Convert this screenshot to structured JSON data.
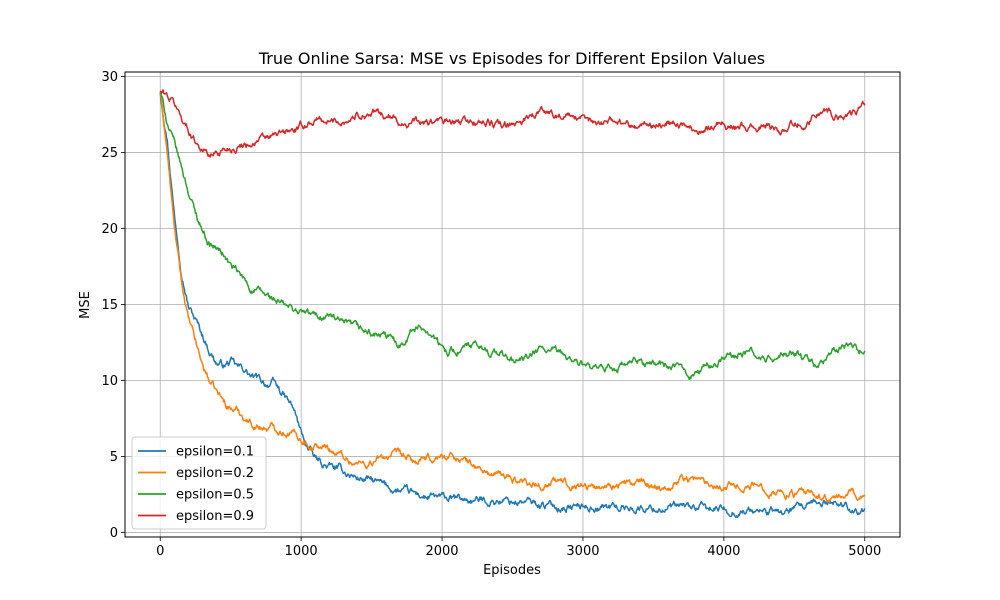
{
  "chart_data": {
    "type": "line",
    "title": "True Online Sarsa: MSE vs Episodes for Different Epsilon Values",
    "xlabel": "Episodes",
    "ylabel": "MSE",
    "xlim": [
      -250,
      5250
    ],
    "ylim": [
      -0.3,
      30.3
    ],
    "xticks": [
      0,
      1000,
      2000,
      3000,
      4000,
      5000
    ],
    "yticks": [
      0,
      5,
      10,
      15,
      20,
      25,
      30
    ],
    "xtick_labels": [
      "0",
      "1000",
      "2000",
      "3000",
      "4000",
      "5000"
    ],
    "ytick_labels": [
      "0",
      "5",
      "10",
      "15",
      "20",
      "25",
      "30"
    ],
    "grid": true,
    "legend_position": "lower-left",
    "series": [
      {
        "name": "epsilon=0.1",
        "color": "#1f77b4",
        "points": [
          [
            0,
            29
          ],
          [
            50,
            26
          ],
          [
            100,
            21
          ],
          [
            150,
            17.5
          ],
          [
            200,
            15
          ],
          [
            250,
            14
          ],
          [
            300,
            13
          ],
          [
            350,
            12
          ],
          [
            400,
            11.2
          ],
          [
            450,
            11
          ],
          [
            500,
            11.2
          ],
          [
            550,
            10.8
          ],
          [
            600,
            10.7
          ],
          [
            650,
            10.2
          ],
          [
            700,
            10
          ],
          [
            750,
            9.8
          ],
          [
            800,
            9.8
          ],
          [
            850,
            9.3
          ],
          [
            900,
            8.7
          ],
          [
            950,
            8
          ],
          [
            1000,
            6.5
          ],
          [
            1050,
            5.5
          ],
          [
            1100,
            4.8
          ],
          [
            1150,
            4.5
          ],
          [
            1200,
            4.3
          ],
          [
            1300,
            4
          ],
          [
            1400,
            3.6
          ],
          [
            1500,
            3.4
          ],
          [
            1600,
            3
          ],
          [
            1700,
            2.7
          ],
          [
            1800,
            2.5
          ],
          [
            1900,
            2.3
          ],
          [
            2000,
            2.2
          ],
          [
            2200,
            2.1
          ],
          [
            2400,
            2.1
          ],
          [
            2600,
            2
          ],
          [
            2800,
            1.7
          ],
          [
            3000,
            1.7
          ],
          [
            3200,
            1.7
          ],
          [
            3400,
            1.6
          ],
          [
            3600,
            1.6
          ],
          [
            3800,
            1.6
          ],
          [
            4000,
            1.5
          ],
          [
            4200,
            1.4
          ],
          [
            4400,
            1.3
          ],
          [
            4600,
            1.6
          ],
          [
            4700,
            1.9
          ],
          [
            4800,
            2
          ],
          [
            4900,
            1.7
          ],
          [
            5000,
            1.3
          ]
        ]
      },
      {
        "name": "epsilon=0.2",
        "color": "#ff7f0e",
        "points": [
          [
            0,
            29
          ],
          [
            50,
            25
          ],
          [
            100,
            20
          ],
          [
            150,
            16.5
          ],
          [
            200,
            14
          ],
          [
            250,
            12.5
          ],
          [
            300,
            11
          ],
          [
            350,
            10
          ],
          [
            400,
            9.2
          ],
          [
            450,
            8.6
          ],
          [
            500,
            8.2
          ],
          [
            550,
            8
          ],
          [
            600,
            7.6
          ],
          [
            650,
            7.2
          ],
          [
            700,
            7
          ],
          [
            750,
            6.9
          ],
          [
            800,
            6.9
          ],
          [
            850,
            6.8
          ],
          [
            900,
            6.7
          ],
          [
            950,
            6.5
          ],
          [
            1000,
            6.2
          ],
          [
            1100,
            5.7
          ],
          [
            1200,
            5.5
          ],
          [
            1300,
            5
          ],
          [
            1400,
            4.5
          ],
          [
            1500,
            4.6
          ],
          [
            1600,
            5
          ],
          [
            1700,
            5
          ],
          [
            1800,
            4.6
          ],
          [
            1900,
            4.7
          ],
          [
            2000,
            5
          ],
          [
            2100,
            5
          ],
          [
            2200,
            4.5
          ],
          [
            2300,
            4
          ],
          [
            2400,
            3.7
          ],
          [
            2500,
            3.5
          ],
          [
            2600,
            3.4
          ],
          [
            2700,
            3.1
          ],
          [
            2800,
            3.3
          ],
          [
            3000,
            3.2
          ],
          [
            3100,
            2.9
          ],
          [
            3200,
            3.2
          ],
          [
            3400,
            3.2
          ],
          [
            3500,
            3.1
          ],
          [
            3600,
            3
          ],
          [
            3700,
            3.6
          ],
          [
            3800,
            3.5
          ],
          [
            3900,
            3.2
          ],
          [
            4000,
            3.2
          ],
          [
            4100,
            3.1
          ],
          [
            4200,
            3.1
          ],
          [
            4300,
            2.9
          ],
          [
            4400,
            2.7
          ],
          [
            4500,
            2.5
          ],
          [
            4600,
            2.4
          ],
          [
            4700,
            2.3
          ],
          [
            4800,
            2.1
          ],
          [
            4900,
            2.7
          ],
          [
            5000,
            2.4
          ]
        ]
      },
      {
        "name": "epsilon=0.5",
        "color": "#2ca02c",
        "points": [
          [
            0,
            29
          ],
          [
            50,
            27
          ],
          [
            100,
            25.5
          ],
          [
            150,
            24
          ],
          [
            200,
            22.5
          ],
          [
            250,
            21
          ],
          [
            300,
            20
          ],
          [
            350,
            19
          ],
          [
            400,
            18.7
          ],
          [
            450,
            18.3
          ],
          [
            500,
            17.5
          ],
          [
            550,
            17
          ],
          [
            600,
            16.5
          ],
          [
            650,
            16
          ],
          [
            700,
            15.8
          ],
          [
            800,
            15.3
          ],
          [
            900,
            14.8
          ],
          [
            1000,
            14.5
          ],
          [
            1100,
            14.2
          ],
          [
            1200,
            14.3
          ],
          [
            1300,
            13.6
          ],
          [
            1400,
            13.3
          ],
          [
            1500,
            13.1
          ],
          [
            1600,
            12.8
          ],
          [
            1700,
            12.4
          ],
          [
            1800,
            13.5
          ],
          [
            1900,
            13.4
          ],
          [
            1950,
            12.8
          ],
          [
            2000,
            12
          ],
          [
            2100,
            12
          ],
          [
            2200,
            12.2
          ],
          [
            2300,
            12
          ],
          [
            2400,
            11.8
          ],
          [
            2500,
            11.3
          ],
          [
            2600,
            11.4
          ],
          [
            2700,
            12
          ],
          [
            2800,
            11.8
          ],
          [
            2900,
            11.5
          ],
          [
            3000,
            11
          ],
          [
            3100,
            10.5
          ],
          [
            3200,
            10.8
          ],
          [
            3300,
            11
          ],
          [
            3400,
            11.2
          ],
          [
            3500,
            11.1
          ],
          [
            3600,
            11
          ],
          [
            3700,
            10.6
          ],
          [
            3800,
            10.5
          ],
          [
            3900,
            11
          ],
          [
            4000,
            11.4
          ],
          [
            4100,
            11.8
          ],
          [
            4200,
            11.8
          ],
          [
            4300,
            11.3
          ],
          [
            4400,
            11.5
          ],
          [
            4500,
            11.8
          ],
          [
            4600,
            11.2
          ],
          [
            4700,
            11
          ],
          [
            4800,
            12
          ],
          [
            4900,
            12.2
          ],
          [
            5000,
            12
          ]
        ]
      },
      {
        "name": "epsilon=0.9",
        "color": "#d62728",
        "points": [
          [
            0,
            29
          ],
          [
            50,
            28.7
          ],
          [
            100,
            28.2
          ],
          [
            150,
            27.3
          ],
          [
            200,
            26.5
          ],
          [
            250,
            25.8
          ],
          [
            300,
            25.3
          ],
          [
            350,
            24.8
          ],
          [
            400,
            25
          ],
          [
            450,
            25.2
          ],
          [
            500,
            25.3
          ],
          [
            600,
            25.6
          ],
          [
            700,
            25.8
          ],
          [
            800,
            26
          ],
          [
            900,
            26.3
          ],
          [
            1000,
            26.6
          ],
          [
            1100,
            27.2
          ],
          [
            1200,
            27
          ],
          [
            1300,
            27.1
          ],
          [
            1400,
            27.5
          ],
          [
            1500,
            27.6
          ],
          [
            1600,
            27.4
          ],
          [
            1700,
            27
          ],
          [
            1800,
            27
          ],
          [
            1900,
            26.9
          ],
          [
            2000,
            27
          ],
          [
            2100,
            26.9
          ],
          [
            2200,
            27
          ],
          [
            2300,
            27
          ],
          [
            2400,
            26.8
          ],
          [
            2500,
            26.6
          ],
          [
            2600,
            27.4
          ],
          [
            2700,
            27.7
          ],
          [
            2800,
            27.6
          ],
          [
            2900,
            27.4
          ],
          [
            3000,
            27
          ],
          [
            3100,
            27
          ],
          [
            3200,
            27.2
          ],
          [
            3300,
            27
          ],
          [
            3400,
            26.8
          ],
          [
            3500,
            26.8
          ],
          [
            3600,
            27
          ],
          [
            3700,
            26.8
          ],
          [
            3800,
            26.5
          ],
          [
            3900,
            26.8
          ],
          [
            4000,
            27
          ],
          [
            4100,
            26.6
          ],
          [
            4200,
            26.6
          ],
          [
            4300,
            26.7
          ],
          [
            4400,
            26.5
          ],
          [
            4500,
            26.9
          ],
          [
            4600,
            27.2
          ],
          [
            4700,
            27.8
          ],
          [
            4800,
            27.5
          ],
          [
            4900,
            27.6
          ],
          [
            5000,
            28
          ]
        ]
      }
    ]
  }
}
